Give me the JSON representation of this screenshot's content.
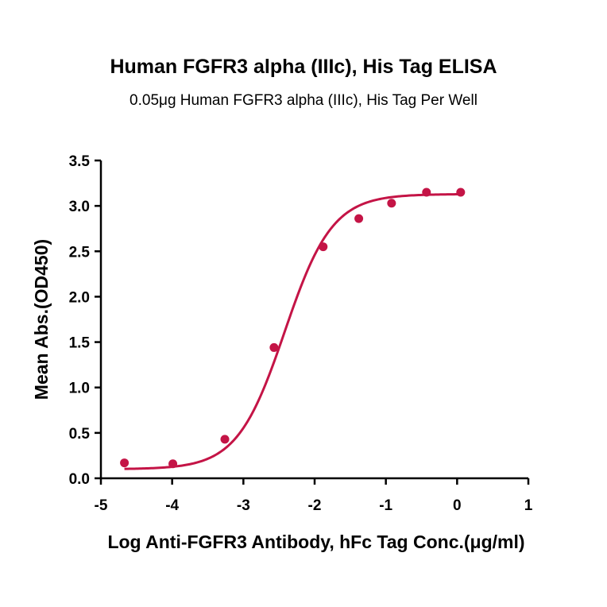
{
  "chart_data": {
    "type": "scatter",
    "title": "Human FGFR3 alpha (IIIc), His Tag ELISA",
    "subtitle": "0.05μg Human FGFR3 alpha (IIIc), His Tag Per Well",
    "xlabel": "Log  Anti-FGFR3 Antibody, hFc Tag Conc.(μg/ml)",
    "ylabel": "Mean Abs.(OD450)",
    "xlim": [
      -5,
      1
    ],
    "ylim": [
      0,
      3.5
    ],
    "xticks": [
      -5,
      -4,
      -3,
      -2,
      -1,
      0,
      1
    ],
    "xtick_labels": [
      "-5",
      "-4",
      "-3",
      "-2",
      "-1",
      "0",
      "1"
    ],
    "yticks": [
      0,
      0.5,
      1,
      1.5,
      2,
      2.5,
      3,
      3.5
    ],
    "ytick_labels": [
      "0.0",
      "0.5",
      "1.0",
      "1.5",
      "2.0",
      "2.5",
      "3.0",
      "3.5"
    ],
    "series": [
      {
        "x": [
          -4.67,
          -3.99,
          -3.26,
          -2.57,
          -1.88,
          -1.38,
          -0.92,
          -0.43,
          0.05
        ],
        "y": [
          0.17,
          0.16,
          0.43,
          1.44,
          2.55,
          2.86,
          3.03,
          3.15,
          3.15
        ],
        "color": "#c41446"
      }
    ],
    "grid": false,
    "legend": "none"
  }
}
